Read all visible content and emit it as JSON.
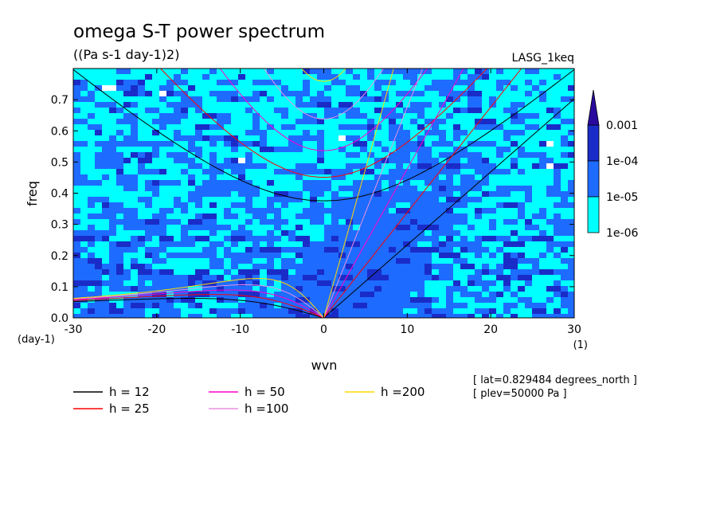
{
  "chart_data": {
    "type": "heatmap",
    "title": "omega S-T power spectrum",
    "subtitle": "((Pa s-1 day-1)2)",
    "run_label": "LASG_1keq",
    "xlabel": "wvn",
    "xunit": "(1)",
    "ylabel": "freq",
    "yunit": "(day-1)",
    "xlim": [
      -30,
      30
    ],
    "ylim": [
      0,
      0.8
    ],
    "xticks": [
      "-30",
      "-20",
      "-10",
      "0",
      "10",
      "20",
      "30"
    ],
    "yticks": [
      "0.0",
      "0.1",
      "0.2",
      "0.3",
      "0.4",
      "0.5",
      "0.6",
      "0.7"
    ],
    "colorbar": {
      "levels": [
        "1e-06",
        "1e-05",
        "1e-04",
        "0.001"
      ],
      "colors": [
        "#ffffff",
        "#00ffff",
        "#1e6bff",
        "#1a2cc8",
        "#2a0a9e"
      ]
    },
    "curves": [
      {
        "label": "h = 12",
        "h": 12,
        "color": "#000000"
      },
      {
        "label": "h = 25",
        "h": 25,
        "color": "#ff0000"
      },
      {
        "label": "h = 50",
        "h": 50,
        "color": "#ff00c8"
      },
      {
        "label": "h =100",
        "h": 100,
        "color": "#e890e0"
      },
      {
        "label": "h =200",
        "h": 200,
        "color": "#ffd700"
      }
    ],
    "info": [
      "[ lat=0.829484 degrees_north ]",
      "[ plev=50000 Pa ]"
    ]
  }
}
